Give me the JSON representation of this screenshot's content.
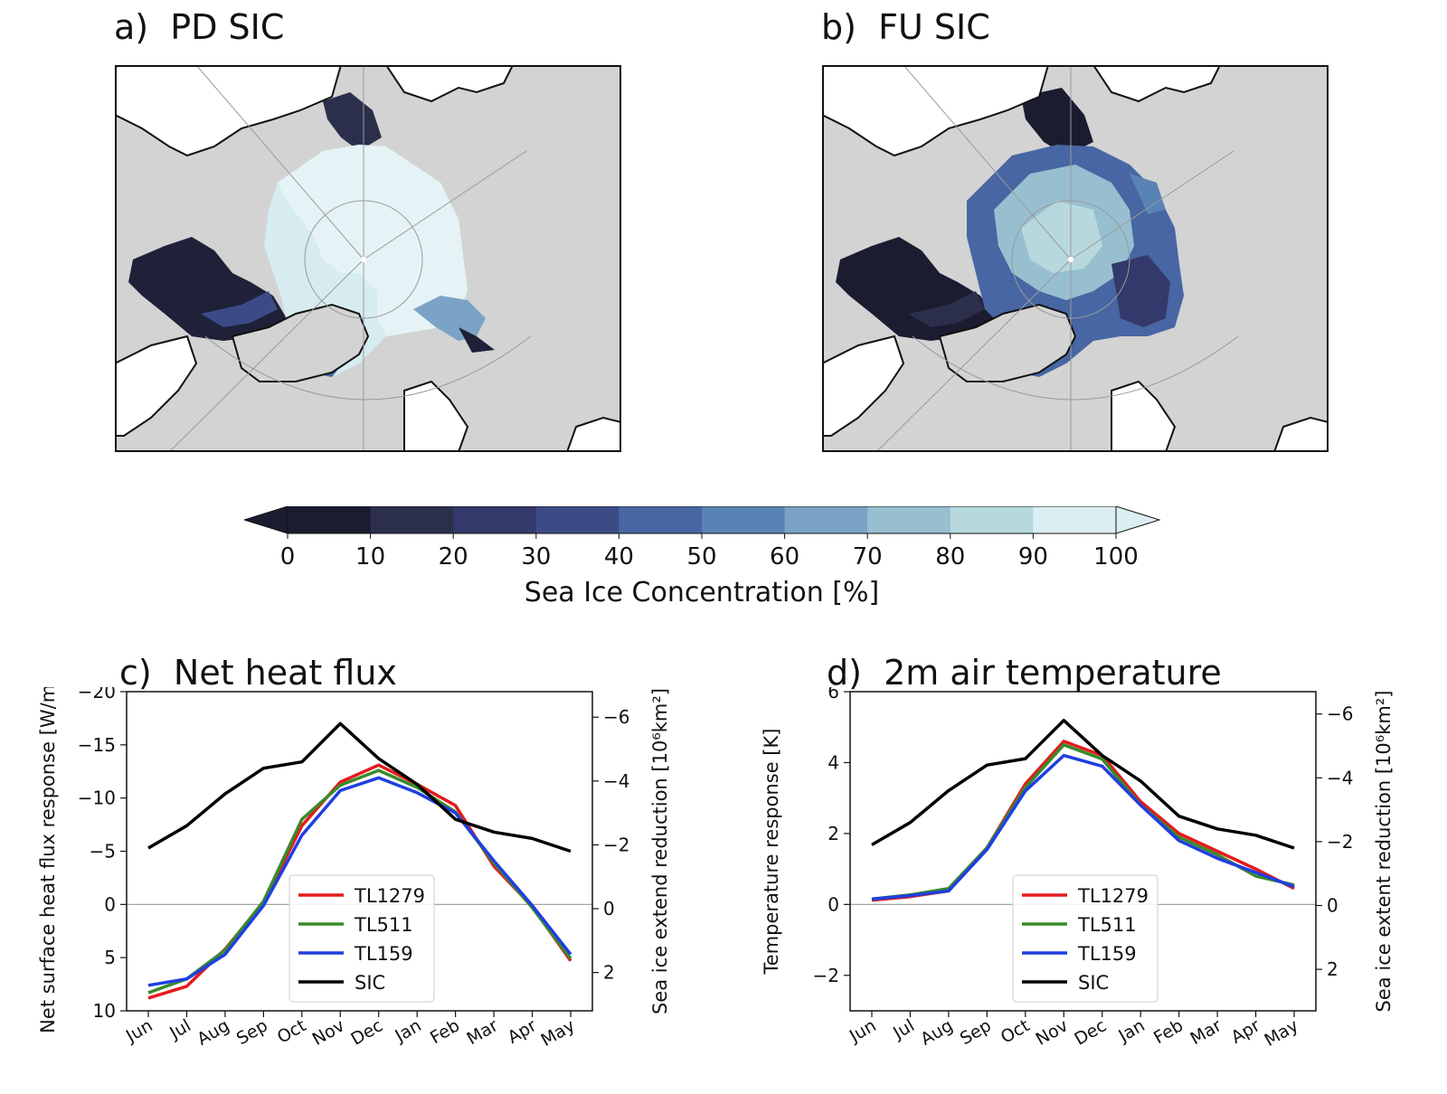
{
  "panels": {
    "a": {
      "letter": "a)",
      "title": "PD SIC"
    },
    "b": {
      "letter": "b)",
      "title": "FU SIC"
    },
    "c": {
      "letter": "c)",
      "title": "Net heat flux"
    },
    "d": {
      "letter": "d)",
      "title": "2m air temperature"
    }
  },
  "colors": {
    "land": "#d3d3d3",
    "grid": "#9a9a9a",
    "TL1279": "#e41a1c",
    "TL511": "#3a8a2a",
    "TL159": "#1f3fe0",
    "SIC": "#000000"
  },
  "colorbar": {
    "label": "Sea Ice Concentration [%]",
    "ticks": [
      "0",
      "10",
      "20",
      "30",
      "40",
      "50",
      "60",
      "70",
      "80",
      "90",
      "100"
    ],
    "colors": [
      "#1b1c30",
      "#2b2f4c",
      "#33396a",
      "#3c4b86",
      "#4766a3",
      "#5a83b5",
      "#7aa3c5",
      "#98bfd0",
      "#b7d9dd",
      "#dbeef2"
    ],
    "extend": "both"
  },
  "legend": [
    "TL1279",
    "TL511",
    "TL159",
    "SIC"
  ],
  "chart_data": [
    {
      "type": "line",
      "panel": "c",
      "title": "Net heat flux",
      "categories": [
        "Jun",
        "Jul",
        "Aug",
        "Sep",
        "Oct",
        "Nov",
        "Dec",
        "Jan",
        "Feb",
        "Mar",
        "Apr",
        "May"
      ],
      "ylabel": "Net surface heat flux response [W/m²]",
      "ylim": [
        10,
        -20
      ],
      "yticks": [
        "10",
        "5",
        "0",
        "−5",
        "−10",
        "−15",
        "−20"
      ],
      "y2label": "Sea ice extend reduction [10⁶km²]",
      "y2lim": [
        3.2,
        -6.8
      ],
      "y2ticks": [
        "2",
        "0",
        "−2",
        "−4",
        "−6"
      ],
      "zero_line": true,
      "legend_position": "lower center",
      "series": [
        {
          "name": "TL1279",
          "axis": "left",
          "values": [
            8.8,
            7.7,
            4.2,
            -0.2,
            -7.4,
            -11.5,
            -13.1,
            -11.3,
            -9.3,
            -3.6,
            0.2,
            5.3
          ]
        },
        {
          "name": "TL511",
          "axis": "left",
          "values": [
            8.3,
            7.0,
            4.3,
            -0.3,
            -8.0,
            -11.2,
            -12.6,
            -11.0,
            -8.7,
            -3.9,
            0.3,
            5.1
          ]
        },
        {
          "name": "TL159",
          "axis": "left",
          "values": [
            7.6,
            7.0,
            4.7,
            0.1,
            -6.5,
            -10.7,
            -11.9,
            -10.5,
            -8.6,
            -4.1,
            0.1,
            4.7
          ]
        },
        {
          "name": "SIC",
          "axis": "right",
          "values": [
            -1.9,
            -2.6,
            -3.6,
            -4.4,
            -4.6,
            -5.8,
            -4.7,
            -3.9,
            -2.8,
            -2.4,
            -2.2,
            -1.8
          ]
        }
      ]
    },
    {
      "type": "line",
      "panel": "d",
      "title": "2m air temperature",
      "categories": [
        "Jun",
        "Jul",
        "Aug",
        "Sep",
        "Oct",
        "Nov",
        "Dec",
        "Jan",
        "Feb",
        "Mar",
        "Apr",
        "May"
      ],
      "ylabel": "Temperature response [K]",
      "ylim": [
        -3,
        6
      ],
      "yticks": [
        "−2",
        "0",
        "2",
        "4",
        "6"
      ],
      "y2label": "Sea ice extent reduction [10⁶km²]",
      "y2lim": [
        3.3,
        -6.7
      ],
      "y2ticks": [
        "2",
        "0",
        "−2",
        "−4",
        "−6"
      ],
      "zero_line": true,
      "legend_position": "lower center",
      "series": [
        {
          "name": "TL1279",
          "axis": "left",
          "values": [
            0.12,
            0.22,
            0.38,
            1.6,
            3.4,
            4.6,
            4.2,
            2.9,
            2.0,
            1.5,
            1.0,
            0.45
          ]
        },
        {
          "name": "TL511",
          "axis": "left",
          "values": [
            0.15,
            0.27,
            0.45,
            1.6,
            3.3,
            4.5,
            4.1,
            2.8,
            1.9,
            1.4,
            0.8,
            0.55
          ]
        },
        {
          "name": "TL159",
          "axis": "left",
          "values": [
            0.15,
            0.25,
            0.38,
            1.55,
            3.2,
            4.2,
            3.9,
            2.8,
            1.8,
            1.3,
            0.9,
            0.5
          ]
        },
        {
          "name": "SIC",
          "axis": "right",
          "values": [
            -1.9,
            -2.6,
            -3.6,
            -4.4,
            -4.6,
            -5.8,
            -4.7,
            -3.9,
            -2.8,
            -2.4,
            -2.2,
            -1.8
          ]
        }
      ]
    }
  ]
}
